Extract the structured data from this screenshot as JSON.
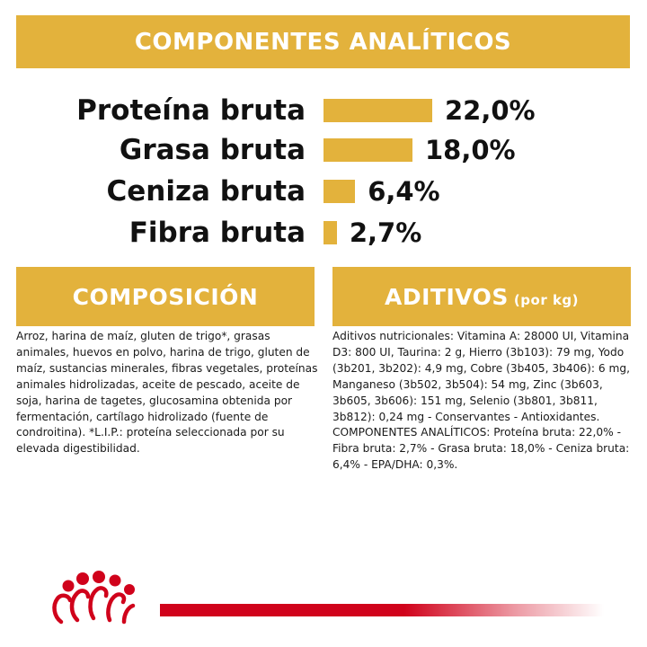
{
  "header": {
    "title": "COMPONENTES ANALÍTICOS"
  },
  "analytics": [
    {
      "label": "Proteína bruta",
      "value_text": "22,0%",
      "value": 22.0
    },
    {
      "label": "Grasa bruta",
      "value_text": "18,0%",
      "value": 18.0
    },
    {
      "label": "Ceniza bruta",
      "value_text": "6,4%",
      "value": 6.4
    },
    {
      "label": "Fibra bruta",
      "value_text": "2,7%",
      "value": 2.7
    }
  ],
  "composicion": {
    "title": "COMPOSICIÓN",
    "text": "Arroz, harina de maíz, gluten de trigo*, grasas animales, huevos en polvo, harina de trigo, gluten de maíz, sustancias minerales, fibras vegetales, proteínas animales hidrolizadas, aceite de pescado, aceite de soja, harina de tagetes, glucosamina obtenida por fermentación, cartílago hidrolizado (fuente de condroitina). *L.I.P.: proteína seleccionada por su elevada digestibilidad."
  },
  "aditivos": {
    "title": "ADITIVOS",
    "unit": "(por kg)",
    "text": "Aditivos nutricionales: Vitamina A: 28000 UI, Vitamina D3: 800 UI, Taurina: 2 g, Hierro (3b103): 79 mg, Yodo (3b201, 3b202): 4,9 mg, Cobre (3b405, 3b406): 6 mg, Manganeso (3b502, 3b504): 54 mg, Zinc (3b603, 3b605, 3b606): 151 mg, Selenio (3b801, 3b811, 3b812): 0,24 mg - Conservantes - Antioxidantes. COMPONENTES ANALÍTICOS: Proteína bruta: 22,0% - Fibra bruta: 2,7% - Grasa bruta: 18,0% - Ceniza bruta: 6,4% - EPA/DHA: 0,3%."
  },
  "colors": {
    "accent": "#E3B23C",
    "brand_red": "#D0021B"
  },
  "footer": {
    "logo_icon": "royal-canin-crown-icon"
  }
}
